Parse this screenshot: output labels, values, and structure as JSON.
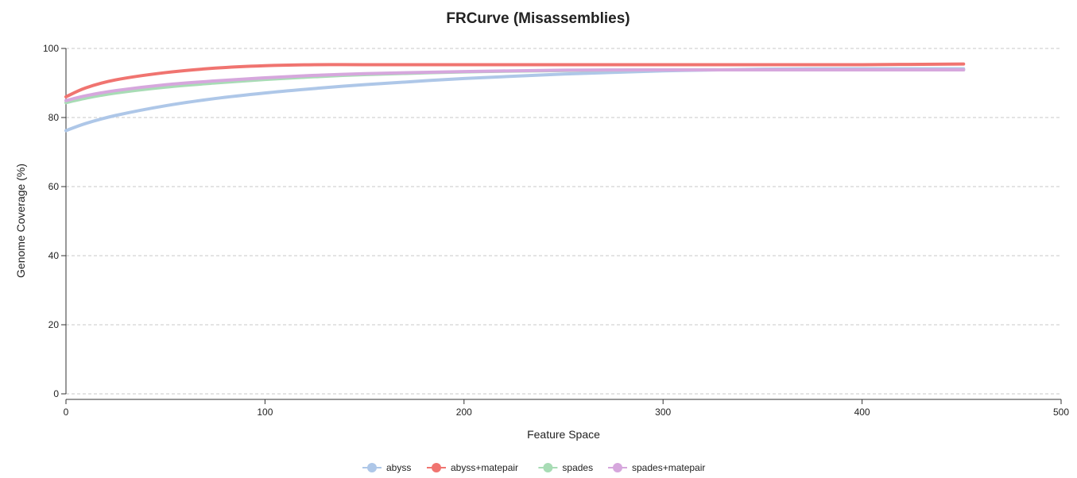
{
  "chart_data": {
    "type": "line",
    "title": "FRCurve (Misassemblies)",
    "xlabel": "Feature Space",
    "ylabel": "Genome Coverage (%)",
    "xlim": [
      0,
      500
    ],
    "ylim": [
      0,
      100
    ],
    "x_ticks": [
      0,
      100,
      200,
      300,
      400,
      500
    ],
    "y_ticks": [
      0,
      20,
      40,
      60,
      80,
      100
    ],
    "grid": true,
    "legend_position": "bottom-center",
    "series": [
      {
        "name": "abyss",
        "color": "#aec7e8",
        "x": [
          0,
          10,
          25,
          50,
          75,
          100,
          125,
          150,
          200,
          250,
          300,
          350,
          400,
          451
        ],
        "y": [
          76.2,
          78.3,
          80.6,
          83.4,
          85.5,
          87.1,
          88.4,
          89.5,
          91.3,
          92.6,
          93.5,
          94.0,
          94.1,
          94.1
        ]
      },
      {
        "name": "abyss+matepair",
        "color": "#f07470",
        "x": [
          0,
          10,
          25,
          50,
          75,
          100,
          125,
          150,
          200,
          250,
          300,
          350,
          400,
          451
        ],
        "y": [
          86.0,
          88.6,
          90.9,
          93.0,
          94.3,
          95.0,
          95.3,
          95.3,
          95.3,
          95.3,
          95.3,
          95.3,
          95.3,
          95.5
        ]
      },
      {
        "name": "spades",
        "color": "#a8dcb5",
        "x": [
          0,
          10,
          25,
          50,
          75,
          100,
          125,
          150,
          200,
          250,
          300,
          350,
          400,
          451
        ],
        "y": [
          84.3,
          85.6,
          87.1,
          88.8,
          90.0,
          91.0,
          91.8,
          92.4,
          93.2,
          93.6,
          93.8,
          93.8,
          93.8,
          93.8
        ]
      },
      {
        "name": "spades+matepair",
        "color": "#d6a7dd",
        "x": [
          0,
          10,
          25,
          50,
          75,
          100,
          125,
          150,
          200,
          250,
          300,
          350,
          400,
          451
        ],
        "y": [
          84.9,
          86.3,
          87.8,
          89.5,
          90.6,
          91.5,
          92.2,
          92.7,
          93.3,
          93.7,
          93.8,
          93.8,
          93.8,
          93.8
        ]
      }
    ]
  }
}
